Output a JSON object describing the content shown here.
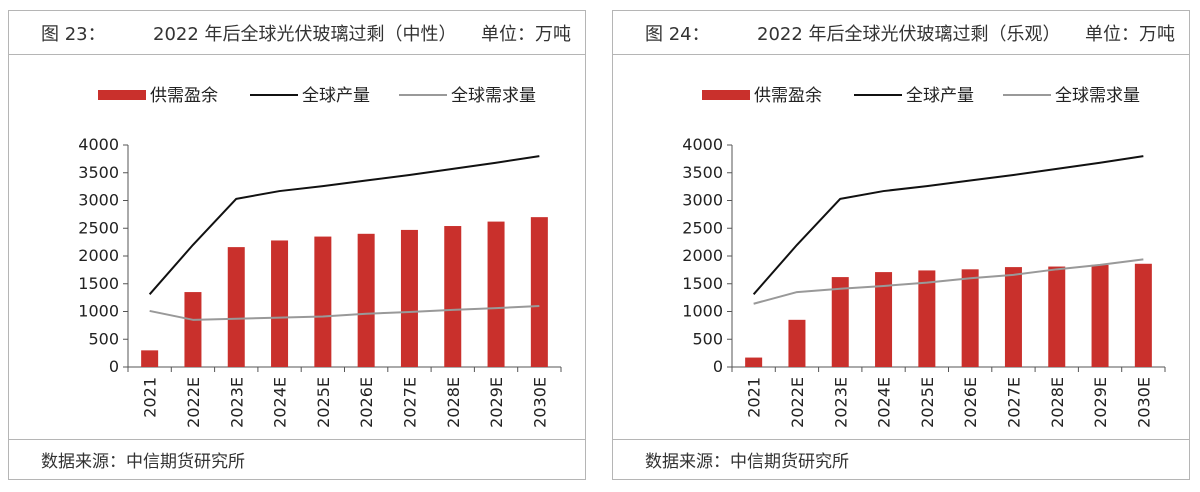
{
  "charts": [
    {
      "figure_label": "图 23：",
      "title_text": "2022 年后全球光伏玻璃过剩（中性）",
      "unit_text": "单位：万吨",
      "source_text": "数据来源：中信期货研究所"
    },
    {
      "figure_label": "图 24：",
      "title_text": "2022 年后全球光伏玻璃过剩（乐观）",
      "unit_text": "单位：万吨",
      "source_text": "数据来源：中信期货研究所"
    }
  ],
  "colors": {
    "bar": "#c9302c",
    "production": "#111111",
    "demand": "#999999"
  },
  "chart_data": [
    {
      "type": "bar",
      "title": "2022 年后全球光伏玻璃过剩（中性） 单位：万吨",
      "categories": [
        "2021",
        "2022E",
        "2023E",
        "2024E",
        "2025E",
        "2026E",
        "2027E",
        "2028E",
        "2029E",
        "2030E"
      ],
      "ylim": [
        0,
        4000
      ],
      "yticks": [
        0,
        500,
        1000,
        1500,
        2000,
        2500,
        3000,
        3500,
        4000
      ],
      "series": [
        {
          "name": "供需盈余",
          "type": "bar",
          "values": [
            300,
            1350,
            2160,
            2280,
            2350,
            2400,
            2470,
            2540,
            2620,
            2700
          ]
        },
        {
          "name": "全球产量",
          "type": "line",
          "values": [
            1310,
            2200,
            3030,
            3170,
            3260,
            3360,
            3460,
            3570,
            3680,
            3800
          ]
        },
        {
          "name": "全球需求量",
          "type": "line",
          "values": [
            1010,
            850,
            870,
            890,
            910,
            960,
            990,
            1030,
            1060,
            1100
          ]
        }
      ]
    },
    {
      "type": "bar",
      "title": "2022 年后全球光伏玻璃过剩（乐观） 单位：万吨",
      "categories": [
        "2021",
        "2022E",
        "2023E",
        "2024E",
        "2025E",
        "2026E",
        "2027E",
        "2028E",
        "2029E",
        "2030E"
      ],
      "ylim": [
        0,
        4000
      ],
      "yticks": [
        0,
        500,
        1000,
        1500,
        2000,
        2500,
        3000,
        3500,
        4000
      ],
      "series": [
        {
          "name": "供需盈余",
          "type": "bar",
          "values": [
            170,
            850,
            1620,
            1710,
            1740,
            1760,
            1800,
            1810,
            1840,
            1860
          ]
        },
        {
          "name": "全球产量",
          "type": "line",
          "values": [
            1310,
            2200,
            3030,
            3170,
            3260,
            3360,
            3460,
            3570,
            3680,
            3800
          ]
        },
        {
          "name": "全球需求量",
          "type": "line",
          "values": [
            1140,
            1350,
            1410,
            1460,
            1520,
            1600,
            1660,
            1760,
            1840,
            1940
          ]
        }
      ]
    }
  ]
}
